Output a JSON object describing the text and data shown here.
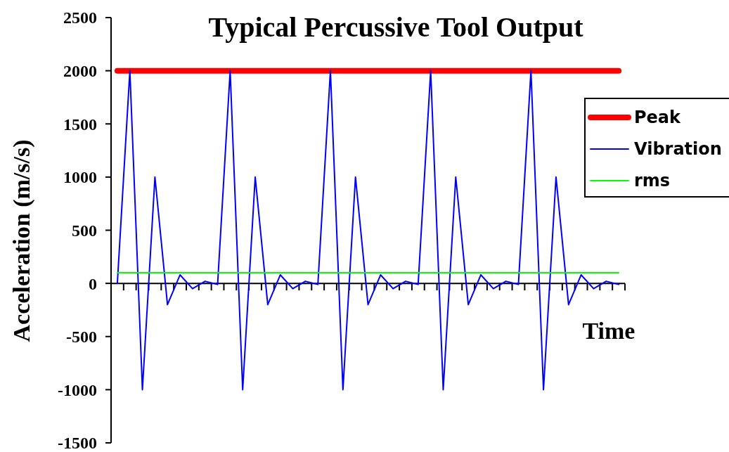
{
  "chart_data": {
    "type": "line",
    "title": "Typical Percussive Tool Output",
    "xlabel": "Time",
    "ylabel": "Acceleration (m/s/s)",
    "categories": [
      null,
      null,
      null,
      null,
      null,
      null,
      null,
      null,
      null,
      null,
      null,
      null,
      null,
      null,
      null,
      null,
      null,
      null,
      null,
      null,
      null,
      null,
      null,
      null,
      null,
      null,
      null,
      null,
      null,
      null,
      null,
      null,
      null,
      null,
      null,
      null,
      null,
      null,
      null,
      null,
      null
    ],
    "series": [
      {
        "name": "Peak",
        "color": "#ff0000",
        "values": [
          2000,
          2000,
          2000,
          2000,
          2000,
          2000,
          2000,
          2000,
          2000,
          2000,
          2000,
          2000,
          2000,
          2000,
          2000,
          2000,
          2000,
          2000,
          2000,
          2000,
          2000,
          2000,
          2000,
          2000,
          2000,
          2000,
          2000,
          2000,
          2000,
          2000,
          2000,
          2000,
          2000,
          2000,
          2000,
          2000,
          2000,
          2000,
          2000,
          2000,
          2000
        ]
      },
      {
        "name": "Vibration",
        "color": "#0000ff",
        "values": [
          0,
          2000,
          -1000,
          1000,
          -200,
          80,
          -50,
          20,
          -10,
          2000,
          -1000,
          1000,
          -200,
          80,
          -50,
          20,
          -10,
          2000,
          -1000,
          1000,
          -200,
          80,
          -50,
          20,
          -10,
          2000,
          -1000,
          1000,
          -200,
          80,
          -50,
          20,
          -10,
          2000,
          -1000,
          1000,
          -200,
          80,
          -50,
          20,
          -10
        ]
      },
      {
        "name": "rms",
        "color": "#00ff00",
        "values": [
          100,
          100,
          100,
          100,
          100,
          100,
          100,
          100,
          100,
          100,
          100,
          100,
          100,
          100,
          100,
          100,
          100,
          100,
          100,
          100,
          100,
          100,
          100,
          100,
          100,
          100,
          100,
          100,
          100,
          100,
          100,
          100,
          100,
          100,
          100,
          100,
          100,
          100,
          100,
          100,
          100
        ]
      }
    ],
    "ylim": [
      -1500,
      2500
    ],
    "yticks": [
      -1500,
      -1000,
      -500,
      0,
      500,
      1000,
      1500,
      2000,
      2500
    ],
    "tick_labels": "y",
    "legend": "right",
    "marker": "none",
    "line_style": "solid"
  }
}
